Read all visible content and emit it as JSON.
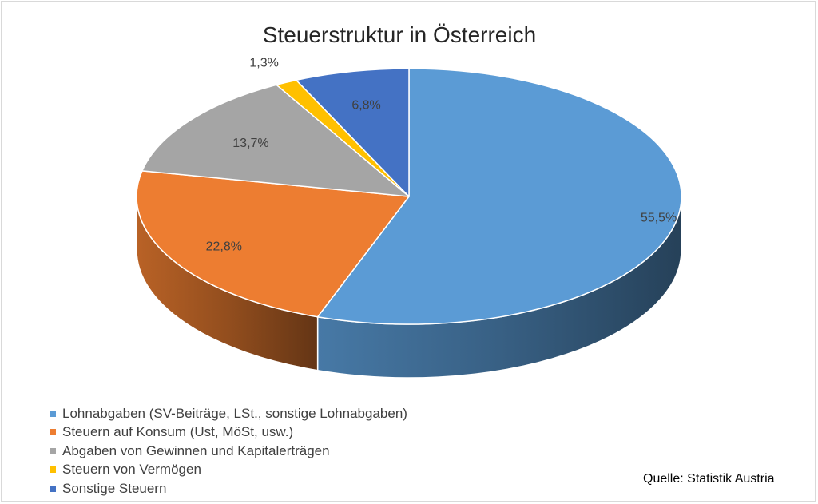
{
  "chart_data": {
    "type": "pie",
    "title": "Steuerstruktur in Österreich",
    "categories": [
      "Lohnabgaben (SV-Beiträge, LSt., sonstige Lohnabgaben)",
      "Steuern auf Konsum (Ust, MöSt, usw.)",
      "Abgaben von Gewinnen und Kapitalerträgen",
      "Steuern von Vermögen",
      "Sonstige Steuern"
    ],
    "values": [
      55.5,
      22.8,
      13.7,
      1.3,
      6.8
    ],
    "value_labels": [
      "55,5%",
      "22,8%",
      "13,7%",
      "1,3%",
      "6,8%"
    ],
    "colors": [
      "#5b9bd5",
      "#ed7d31",
      "#a5a5a5",
      "#ffc000",
      "#4472c4"
    ],
    "legend_position": "bottom-left"
  },
  "source_note": "Quelle: Statistik Austria"
}
